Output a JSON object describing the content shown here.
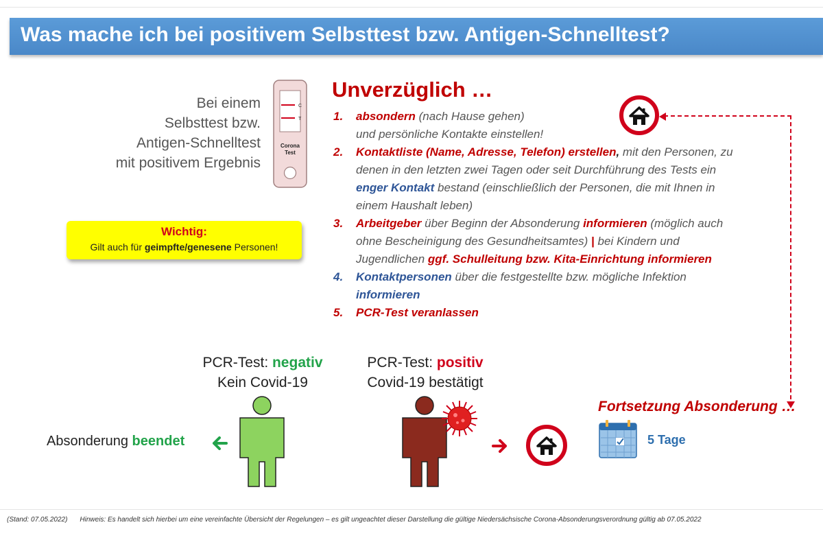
{
  "banner": {
    "title": "Was mache ich bei positivem Selbsttest bzw. Antigen-Schnelltest?"
  },
  "intro": {
    "lines": [
      "Bei einem",
      "Selbsttest bzw.",
      "Antigen-Schnelltest",
      "mit positivem Ergebnis"
    ]
  },
  "test_device": {
    "marker_c": "C",
    "marker_t": "T",
    "label_1": "Corona",
    "label_2": "Test"
  },
  "important": {
    "title": "Wichtig:",
    "text_pre": "Gilt auch für ",
    "text_bold": "geimpfte/genesene",
    "text_post": " Personen!"
  },
  "headline": "Unverzüglich …",
  "steps": {
    "s1": {
      "num": "1.",
      "bold": "absondern",
      "rest": " (nach Hause gehen)",
      "line2": "und persönliche Kontakte einstellen!"
    },
    "s2": {
      "num": "2.",
      "bold": "Kontaktliste (Name, Adresse, Telefon) erstellen",
      "comma": ",",
      "rest": " mit den Personen, zu",
      "line2": "denen in den letzten zwei Tagen oder seit Durchführung des Tests ein",
      "line3_bold": "enger Kontakt",
      "line3_rest": " bestand (einschließlich der Personen, die mit Ihnen in",
      "line4": "einem Haushalt leben)"
    },
    "s3": {
      "num": "3.",
      "bold1": "Arbeitgeber",
      "mid": " über Beginn der Absonderung ",
      "bold2": "informieren",
      "rest": " (möglich auch",
      "line2": "ohne Bescheinigung des Gesundheitsamtes) ",
      "sep": "|",
      "line2_rest": " bei Kindern und",
      "line3": "Jugendlichen ",
      "line3_bold": "ggf. Schulleitung bzw. Kita-Einrichtung informieren"
    },
    "s4": {
      "num": "4.",
      "bold": "Kontaktpersonen",
      "rest": " über die festgestellte bzw. mögliche Infektion",
      "line2_bold": "informieren"
    },
    "s5": {
      "num": "5.",
      "bold": "PCR-Test veranlassen"
    }
  },
  "pcr_negative": {
    "label": "PCR-Test: ",
    "result": "negativ",
    "line2": "Kein Covid-19"
  },
  "pcr_positive": {
    "label": "PCR-Test: ",
    "result": "positiv",
    "line2": "Covid-19 bestätigt"
  },
  "isolation_ended": {
    "text": "Absonderung ",
    "bold": "beendet"
  },
  "continuation": {
    "title": "Fortsetzung Absonderung …",
    "duration": "5 Tage"
  },
  "footer": {
    "stand": "(Stand: 07.05.2022)",
    "hint": "Hinweis: Es handelt sich hierbei um eine vereinfachte Übersicht der Regelungen – es gilt ungeachtet dieser Darstellung die gültige Niedersächsische Corona-Absonderungsverordnung gültig ab 07.05.2022"
  },
  "colors": {
    "banner": "#4a88c8",
    "red": "#c00000",
    "blue": "#2e5597",
    "green": "#22a34a",
    "warning_bg": "#ffff00",
    "negative_person": "#8dd35f",
    "positive_person": "#8b2a1e"
  },
  "icons": [
    "home-icon",
    "corona-test-icon",
    "person-icon",
    "virus-icon",
    "calendar-icon",
    "arrow-left-icon",
    "arrow-right-icon"
  ]
}
